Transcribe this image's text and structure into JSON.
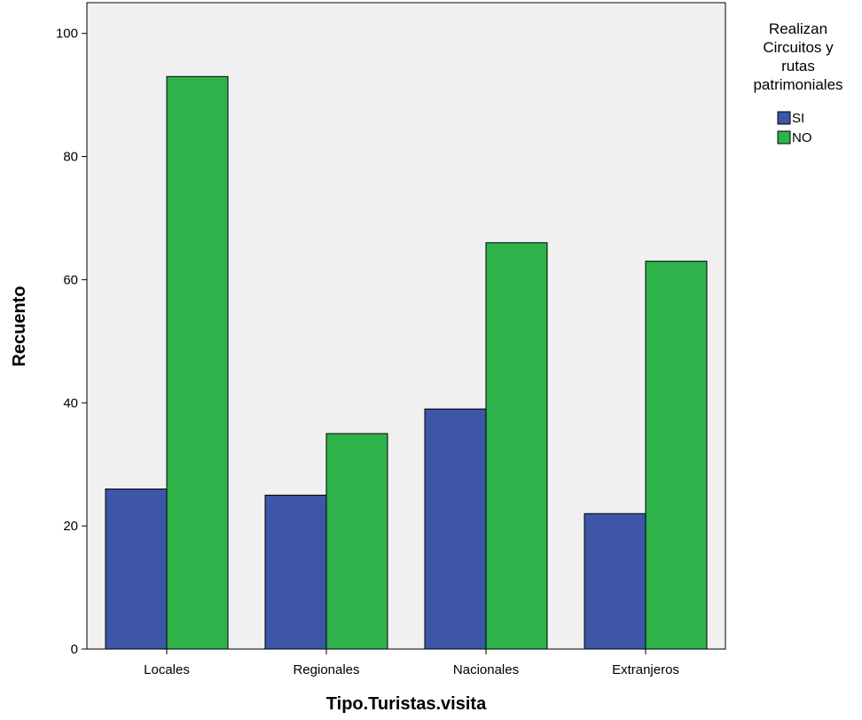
{
  "chart_data": {
    "type": "bar",
    "title": "",
    "xlabel": "Tipo.Turistas.visita",
    "ylabel": "Recuento",
    "categories": [
      "Locales",
      "Regionales",
      "Nacionales",
      "Extranjeros"
    ],
    "series": [
      {
        "name": "SI",
        "color": "#3d56a6",
        "values": [
          26,
          25,
          39,
          22
        ]
      },
      {
        "name": "NO",
        "color": "#2db34a",
        "values": [
          93,
          35,
          66,
          63
        ]
      }
    ],
    "ylim": [
      0,
      105
    ],
    "yticks": [
      0,
      20,
      40,
      60,
      80,
      100
    ],
    "grid": false,
    "plot_background": "#f0f0f0",
    "legend": {
      "title_lines": [
        "Realizan",
        "Circuitos y",
        "rutas",
        "patrimoniales"
      ],
      "placement": "top-right, outside plot"
    }
  }
}
